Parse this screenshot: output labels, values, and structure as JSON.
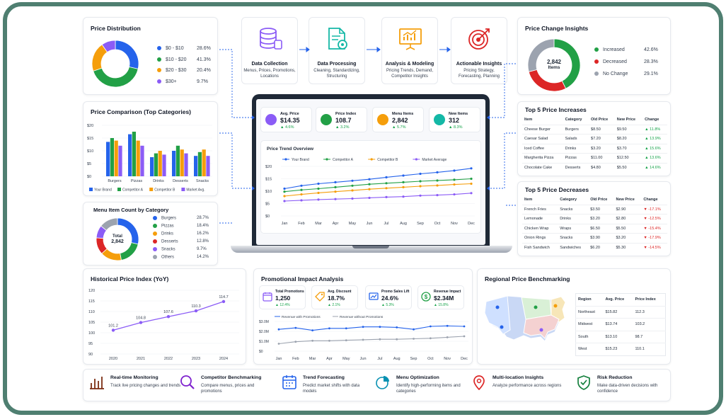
{
  "colors": {
    "blue": "#2563eb",
    "green": "#22a046",
    "orange": "#f59e0b",
    "purple": "#8b5cf6",
    "gray": "#9ca3af",
    "red": "#dc2626",
    "teal": "#4f7f71"
  },
  "price_distribution": {
    "title": "Price Distribution",
    "items": [
      {
        "label": "$0 - $10",
        "pct": "28.6%",
        "value": 28.6,
        "color": "#2563eb"
      },
      {
        "label": "$10 - $20",
        "pct": "41.3%",
        "value": 41.3,
        "color": "#22a046"
      },
      {
        "label": "$20 - $30",
        "pct": "20.4%",
        "value": 20.4,
        "color": "#f59e0b"
      },
      {
        "label": "$30+",
        "pct": "9.7%",
        "value": 9.7,
        "color": "#8b5cf6"
      }
    ]
  },
  "price_comparison": {
    "title": "Price Comparison (Top Categories)",
    "categories": [
      "Burgers",
      "Pizzas",
      "Drinks",
      "Desserts",
      "Snacks"
    ],
    "yticks": [
      "$20",
      "$15",
      "$10",
      "$5",
      "$0"
    ],
    "series": [
      {
        "name": "Your Brand",
        "color": "#2563eb",
        "values": [
          13.5,
          16.5,
          7.5,
          10,
          8
        ]
      },
      {
        "name": "Competitor A",
        "color": "#22a046",
        "values": [
          15,
          17.5,
          9,
          12,
          9.5
        ]
      },
      {
        "name": "Competitor B",
        "color": "#f59e0b",
        "values": [
          14,
          14,
          10,
          10.5,
          10.5
        ]
      },
      {
        "name": "Market Avg.",
        "color": "#8b5cf6",
        "values": [
          12,
          12,
          8.5,
          9,
          8
        ]
      }
    ]
  },
  "menu_count": {
    "title": "Menu Item Count by Category",
    "center_label": "Total",
    "center_value": "2,842",
    "items": [
      {
        "label": "Burgers",
        "pct": "28.7%",
        "value": 28.7,
        "color": "#2563eb"
      },
      {
        "label": "Pizzas",
        "pct": "18.4%",
        "value": 18.4,
        "color": "#22a046"
      },
      {
        "label": "Drinks",
        "pct": "16.2%",
        "value": 16.2,
        "color": "#f59e0b"
      },
      {
        "label": "Desserts",
        "pct": "12.8%",
        "value": 12.8,
        "color": "#dc2626"
      },
      {
        "label": "Snacks",
        "pct": "9.7%",
        "value": 9.7,
        "color": "#8b5cf6"
      },
      {
        "label": "Others",
        "pct": "14.2%",
        "value": 14.2,
        "color": "#9ca3af"
      }
    ]
  },
  "process": [
    {
      "title": "Data Collection",
      "sub": "Menus, Prices, Promotions, Locations",
      "icon": "database-icon"
    },
    {
      "title": "Data Processing",
      "sub": "Cleaning, Standardizing, Structuring",
      "icon": "document-gear-icon"
    },
    {
      "title": "Analysis & Modeling",
      "sub": "Pricing Trends, Demand, Competitor Insights",
      "icon": "chart-presentation-icon"
    },
    {
      "title": "Actionable Insights",
      "sub": "Pricing Strategy, Forecasting, Planning",
      "icon": "target-icon"
    }
  ],
  "kpis": [
    {
      "label": "Avg. Price",
      "value": "$14.35",
      "change": "▲ 4.6%",
      "color": "#8b5cf6",
      "icon": "price-tag-icon"
    },
    {
      "label": "Price Index",
      "value": "108.7",
      "change": "▲ 3.2%",
      "color": "#22a046",
      "icon": "index-chart-icon"
    },
    {
      "label": "Menu Items",
      "value": "2,842",
      "change": "▲ 5.7%",
      "color": "#f59e0b",
      "icon": "menu-list-icon"
    },
    {
      "label": "New Items",
      "value": "312",
      "change": "▲ 8.3%",
      "color": "#14b8a6",
      "icon": "new-item-icon"
    }
  ],
  "trend": {
    "title": "Price Trend Overview",
    "months": [
      "Jan",
      "Feb",
      "Mar",
      "Apr",
      "May",
      "Jun",
      "Jul",
      "Aug",
      "Sep",
      "Oct",
      "Nov",
      "Dec"
    ],
    "yticks": [
      "$20",
      "$15",
      "$10",
      "$5",
      "$0"
    ],
    "series": [
      {
        "name": "Your Brand",
        "color": "#2563eb",
        "values": [
          11,
          12.2,
          13,
          13.6,
          14.2,
          14.8,
          15.6,
          16.3,
          17,
          17.6,
          18.3,
          19.2
        ]
      },
      {
        "name": "Competitor A",
        "color": "#22a046",
        "values": [
          9.8,
          10.5,
          11,
          11.6,
          12.2,
          12.8,
          13.2,
          13.6,
          14,
          14.3,
          14.6,
          15
        ]
      },
      {
        "name": "Competitor B",
        "color": "#f59e0b",
        "values": [
          8,
          8.7,
          9.3,
          9.8,
          10.3,
          10.8,
          11.2,
          11.6,
          12,
          12.3,
          12.7,
          13
        ]
      },
      {
        "name": "Market Average",
        "color": "#8b5cf6",
        "values": [
          6,
          6.3,
          6.6,
          6.8,
          7,
          7.3,
          7.6,
          7.8,
          8.2,
          8.4,
          8.7,
          9.2
        ]
      }
    ]
  },
  "price_change": {
    "title": "Price Change Insights",
    "center_value": "2,842",
    "center_label": "Items",
    "items": [
      {
        "label": "Increased",
        "pct": "42.6%",
        "value": 42.6,
        "color": "#22a046"
      },
      {
        "label": "Decreased",
        "pct": "28.3%",
        "value": 28.3,
        "color": "#dc2626"
      },
      {
        "label": "No Change",
        "pct": "29.1%",
        "value": 29.1,
        "color": "#9ca3af"
      }
    ]
  },
  "increases": {
    "title": "Top 5 Price Increases",
    "headers": [
      "Item",
      "Category",
      "Old Price",
      "New Price",
      "Change"
    ],
    "rows": [
      [
        "Cheese Burger",
        "Burgers",
        "$8.50",
        "$9.50",
        "▲ 11.8%"
      ],
      [
        "Caesar Salad",
        "Salads",
        "$7.20",
        "$8.20",
        "▲ 13.9%"
      ],
      [
        "Iced Coffee",
        "Drinks",
        "$3.20",
        "$3.70",
        "▲ 15.6%"
      ],
      [
        "Margherita Pizza",
        "Pizzas",
        "$11.00",
        "$12.50",
        "▲ 13.6%"
      ],
      [
        "Chocolate Cake",
        "Desserts",
        "$4.80",
        "$5.50",
        "▲ 14.6%"
      ]
    ]
  },
  "decreases": {
    "title": "Top 5 Price Decreases",
    "headers": [
      "Item",
      "Category",
      "Old Price",
      "New Price",
      "Change"
    ],
    "rows": [
      [
        "French Fries",
        "Snacks",
        "$3.50",
        "$2.90",
        "▼ -17.1%"
      ],
      [
        "Lemonade",
        "Drinks",
        "$3.20",
        "$2.80",
        "▼ -12.5%"
      ],
      [
        "Chicken Wrap",
        "Wraps",
        "$6.50",
        "$5.50",
        "▼ -15.4%"
      ],
      [
        "Onion Rings",
        "Snacks",
        "$3.90",
        "$3.20",
        "▼ -17.9%"
      ],
      [
        "Fish Sandwich",
        "Sandwiches",
        "$6.20",
        "$5.30",
        "▼ -14.5%"
      ]
    ]
  },
  "historical": {
    "title": "Historical Price Index (YoY)",
    "years": [
      "2020",
      "2021",
      "2022",
      "2023",
      "2024"
    ],
    "values": [
      101.2,
      104.8,
      107.6,
      110.3,
      114.7
    ],
    "labels": [
      "101.2",
      "104.8",
      "107.6",
      "110.3",
      "114.7"
    ],
    "yticks": [
      "120",
      "115",
      "110",
      "105",
      "100",
      "95",
      "90"
    ]
  },
  "promo": {
    "title": "Promotional Impact Analysis",
    "tiles": [
      {
        "label": "Total Promotions",
        "value": "1,250",
        "change": "▲ 12.4%",
        "color": "#8b5cf6",
        "icon": "calendar-icon"
      },
      {
        "label": "Avg. Discount",
        "value": "18.7%",
        "change": "▲ 2.1%",
        "color": "#f59e0b",
        "icon": "discount-tag-icon"
      },
      {
        "label": "Promo Sales Lift",
        "value": "24.6%",
        "change": "▲ 5.3%",
        "color": "#2563eb",
        "icon": "sales-lift-icon"
      },
      {
        "label": "Revenue Impact",
        "value": "$2.34M",
        "change": "▲ 15.8%",
        "color": "#22a046",
        "icon": "dollar-icon"
      }
    ],
    "legend": [
      "Revenue with Promotions",
      "Revenue without Promotions"
    ],
    "months": [
      "Jan",
      "Feb",
      "Mar",
      "Apr",
      "May",
      "Jun",
      "Jul",
      "Aug",
      "Sep",
      "Oct",
      "Nov",
      "Dec"
    ],
    "yticks": [
      "$3.0M",
      "$2.0M",
      "$1.0M",
      "$0"
    ],
    "with": [
      2.2,
      2.35,
      2.1,
      2.3,
      2.3,
      2.45,
      2.45,
      2.4,
      2.2,
      2.5,
      2.55,
      2.5
    ],
    "without": [
      0.75,
      0.95,
      1.05,
      1.05,
      1.1,
      1.15,
      1.2,
      1.2,
      1.25,
      1.3,
      1.4,
      1.5
    ]
  },
  "regional": {
    "title": "Regional Price Benchmarking",
    "headers": [
      "Region",
      "Avg. Price",
      "Price Index"
    ],
    "rows": [
      [
        "Northeast",
        "$15.82",
        "112.3"
      ],
      [
        "Midwest",
        "$13.74",
        "103.2"
      ],
      [
        "South",
        "$13.10",
        "98.7"
      ],
      [
        "West",
        "$15.23",
        "110.1"
      ]
    ]
  },
  "features": [
    {
      "title": "Real-time Monitoring",
      "sub": "Track live pricing changes and trends",
      "icon": "bar-chart-icon"
    },
    {
      "title": "Competitor Benchmarking",
      "sub": "Compare menus, prices and promotions",
      "icon": "magnifier-icon"
    },
    {
      "title": "Trend Forecasting",
      "sub": "Predict market shifts with data models",
      "icon": "calendar-chart-icon"
    },
    {
      "title": "Menu Optimization",
      "sub": "Identify high-performing items and categories",
      "icon": "pie-chart-icon"
    },
    {
      "title": "Multi-location Insights",
      "sub": "Analyze performance across regions",
      "icon": "location-pin-icon"
    },
    {
      "title": "Risk Reduction",
      "sub": "Make data-driven decisions with confidence",
      "icon": "shield-check-icon"
    }
  ]
}
